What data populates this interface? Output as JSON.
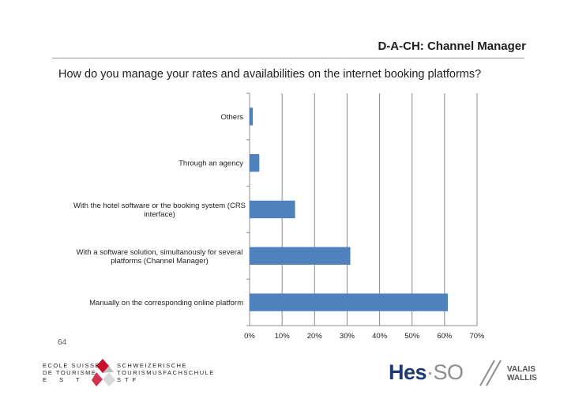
{
  "slide": {
    "title": "D-A-CH: Channel Manager",
    "question": "How do you manage your rates and availabilities on the internet booking platforms?",
    "page_number": "64"
  },
  "footer": {
    "school_line1": "ECOLE SUISSE",
    "school_line2": "DE TOURISME",
    "school_line3": "E S T",
    "school2_line1": "SCHWEIZERISCHE",
    "school2_line2": "TOURISMUSFACHSCHULE",
    "school2_line3": "S T F",
    "hes_text": "Hes",
    "hes_dot": "·",
    "hes_so": "SO",
    "valais_line1": "VALAIS",
    "valais_line2": "WALLIS",
    "emblem_icon": "swiss-tourism-emblem-icon",
    "accent_red": "#c8102e"
  },
  "chart_data": {
    "type": "bar",
    "orientation": "horizontal",
    "categories": [
      [
        "Others"
      ],
      [
        "Through an agency"
      ],
      [
        "With the hotel software or the booking system (CRS",
        "interface)"
      ],
      [
        "With a software solution, simultanously for several",
        "platforms (Channel Manager)"
      ],
      [
        "Manually on the corresponding online platform"
      ]
    ],
    "values": [
      1,
      3,
      14,
      31,
      61
    ],
    "xlim": [
      0,
      70
    ],
    "xticks": [
      0,
      10,
      20,
      30,
      40,
      50,
      60,
      70
    ],
    "tick_format": "percent",
    "grid": true,
    "bar_color": "#4f81bd",
    "grid_color": "#8c8c8c",
    "legend": "none"
  }
}
